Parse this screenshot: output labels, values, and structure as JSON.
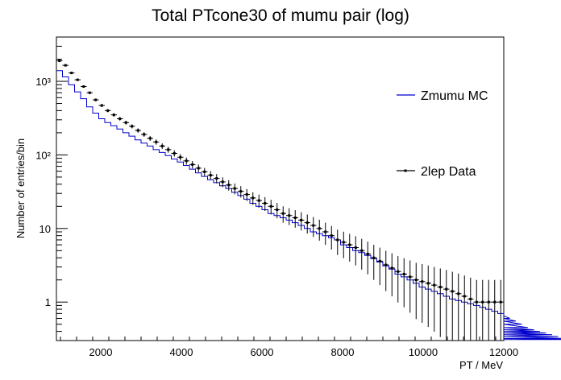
{
  "chart_data": {
    "type": "line",
    "title": "Total PTcone30 of mumu pair (log)",
    "xlabel": "PT / MeV",
    "ylabel": "Number of entries/bin",
    "xlim": [
      900,
      12000
    ],
    "ylim": [
      0.3,
      4000
    ],
    "yscale": "log",
    "grid": false,
    "legend_position": "right",
    "x_ticks": [
      2000,
      4000,
      6000,
      8000,
      10000,
      12000
    ],
    "x_tick_labels": [
      "2000",
      "4000",
      "6000",
      "8000",
      "10000",
      "12000"
    ],
    "y_ticks": [
      1,
      10,
      100,
      1000
    ],
    "y_tick_labels": [
      "1",
      "10",
      "10²",
      "10³"
    ],
    "bin_width": 150,
    "x_start": 900,
    "series": [
      {
        "name": "Zmumu MC",
        "style": "step",
        "color": "#0000cc",
        "values": [
          1400,
          1150,
          900,
          720,
          580,
          450,
          370,
          310,
          275,
          250,
          225,
          200,
          180,
          160,
          145,
          132,
          118,
          108,
          98,
          88,
          80,
          72,
          64,
          57,
          51,
          46,
          42,
          38,
          35,
          31,
          28,
          25,
          22,
          20,
          18,
          16,
          15,
          14,
          13,
          12,
          11,
          10,
          9,
          8.5,
          8,
          7.5,
          7,
          6,
          5.5,
          5,
          4.7,
          4.3,
          3.9,
          3.5,
          3.1,
          2.8,
          2.4,
          2.2,
          2.0,
          1.8,
          1.6,
          1.5,
          1.4,
          1.3,
          1.2,
          1.1,
          1.05,
          1.0,
          0.95,
          0.9,
          0.85,
          0.8,
          0.75,
          0.7,
          0.65,
          0.6,
          0.55,
          0.5,
          0.45,
          0.42,
          0.4,
          0.38,
          0.36,
          0.34,
          0.32,
          0.31
        ]
      },
      {
        "name": "2lep Data",
        "style": "markers",
        "color": "#000000",
        "values": [
          1900,
          1650,
          1300,
          1050,
          850,
          700,
          560,
          470,
          400,
          350,
          310,
          275,
          245,
          215,
          190,
          168,
          150,
          132,
          118,
          105,
          93,
          83,
          74,
          66,
          59,
          53,
          48,
          43,
          39,
          35,
          32,
          29,
          26,
          24,
          22,
          20,
          18,
          16,
          15,
          14,
          13,
          12,
          11,
          10,
          9,
          8,
          7,
          6.5,
          6,
          5.5,
          5,
          4.5,
          4,
          3.6,
          3.2,
          2.9,
          2.6,
          2.4,
          2.2,
          2,
          1.9,
          1.8,
          1.7,
          1.6,
          1.5,
          1.4,
          1.3,
          1.2,
          1.1,
          1,
          1,
          1,
          1,
          1,
          1,
          1,
          1,
          1,
          1,
          1,
          1,
          1,
          1,
          1,
          1,
          1
        ]
      }
    ]
  }
}
